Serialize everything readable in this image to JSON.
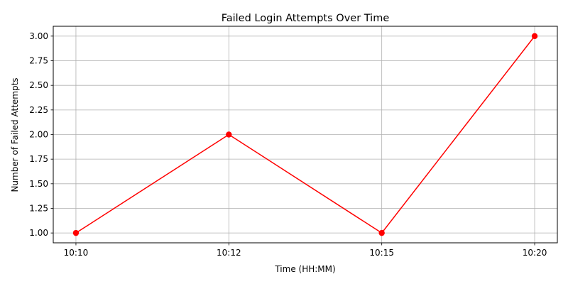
{
  "chart_data": {
    "type": "line",
    "title": "Failed Login Attempts Over Time",
    "xlabel": "Time (HH:MM)",
    "ylabel": "Number of Failed Attempts",
    "categories": [
      "10:10",
      "10:12",
      "10:15",
      "10:20"
    ],
    "series": [
      {
        "values": [
          1,
          2,
          1,
          3
        ],
        "color": "#ff0000",
        "marker": "circle"
      }
    ],
    "ylim": [
      0.9,
      3.1
    ],
    "yticks": [
      1.0,
      1.25,
      1.5,
      1.75,
      2.0,
      2.25,
      2.5,
      2.75,
      3.0
    ],
    "ytick_labels": [
      "1.00",
      "1.25",
      "1.50",
      "1.75",
      "2.00",
      "2.25",
      "2.50",
      "2.75",
      "3.00"
    ],
    "grid": true,
    "grid_color": "#b0b0b0",
    "legend": false
  }
}
